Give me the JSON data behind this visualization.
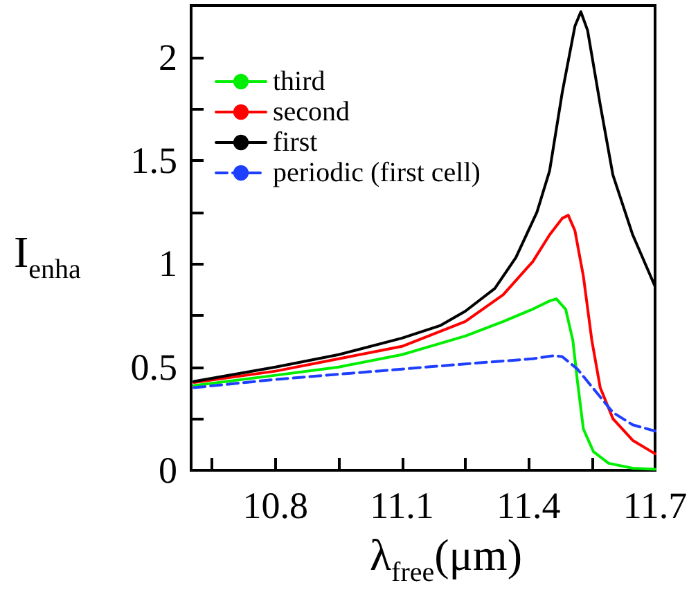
{
  "chart_data": {
    "type": "line",
    "xlabel": "λ$_{free}$(μm)",
    "ylabel": "I$_{enha}$",
    "xlim": [
      10.6,
      11.7
    ],
    "xticks": [
      {
        "value": 10.65,
        "label": null
      },
      10.8,
      {
        "value": 10.95,
        "label": null
      },
      11.1,
      {
        "value": 11.25,
        "label": null
      },
      11.4,
      {
        "value": 11.55,
        "label": null
      },
      11.7
    ],
    "ylim": [
      0,
      2.25
    ],
    "yticks": [
      0,
      {
        "value": 0.25,
        "label": null
      },
      0.5,
      {
        "value": 0.75,
        "label": null
      },
      1,
      {
        "value": 1.25,
        "label": null
      },
      1.5,
      {
        "value": 1.75,
        "label": null
      },
      2
    ],
    "legend": "top left",
    "grid": false,
    "marker": "none",
    "series": [
      {
        "name": "third",
        "color": "#00ee00",
        "line_style": "solid",
        "x": [
          10.607,
          10.8,
          10.95,
          11.1,
          11.25,
          11.34,
          11.41,
          11.45,
          11.466,
          11.488,
          11.505,
          11.516,
          11.53,
          11.554,
          11.59,
          11.647,
          11.7
        ],
        "values": [
          0.41,
          0.46,
          0.5,
          0.56,
          0.65,
          0.72,
          0.78,
          0.82,
          0.83,
          0.78,
          0.63,
          0.43,
          0.2,
          0.09,
          0.034,
          0.01,
          0.005
        ]
      },
      {
        "name": "second",
        "color": "#ff0000",
        "line_style": "solid",
        "x": [
          10.607,
          10.8,
          10.95,
          11.1,
          11.25,
          11.34,
          11.41,
          11.45,
          11.48,
          11.494,
          11.51,
          11.53,
          11.55,
          11.57,
          11.6,
          11.647,
          11.7
        ],
        "values": [
          0.425,
          0.48,
          0.54,
          0.6,
          0.72,
          0.85,
          1.01,
          1.14,
          1.22,
          1.235,
          1.16,
          0.94,
          0.63,
          0.4,
          0.25,
          0.145,
          0.08
        ]
      },
      {
        "name": "first",
        "color": "#000000",
        "line_style": "solid",
        "x": [
          10.607,
          10.8,
          10.95,
          11.1,
          11.19,
          11.25,
          11.32,
          11.37,
          11.42,
          11.45,
          11.48,
          11.51,
          11.524,
          11.54,
          11.57,
          11.6,
          11.647,
          11.7
        ],
        "values": [
          0.43,
          0.5,
          0.56,
          0.64,
          0.7,
          0.77,
          0.88,
          1.03,
          1.25,
          1.45,
          1.83,
          2.15,
          2.22,
          2.13,
          1.77,
          1.43,
          1.14,
          0.89
        ]
      },
      {
        "name": "periodic (first cell)",
        "color": "#1f3fff",
        "line_style": "dashed",
        "x": [
          10.607,
          10.8,
          11.1,
          11.25,
          11.41,
          11.46,
          11.48,
          11.516,
          11.56,
          11.6,
          11.647,
          11.7
        ],
        "values": [
          0.4,
          0.44,
          0.49,
          0.515,
          0.54,
          0.555,
          0.55,
          0.49,
          0.38,
          0.28,
          0.22,
          0.19
        ]
      }
    ]
  }
}
